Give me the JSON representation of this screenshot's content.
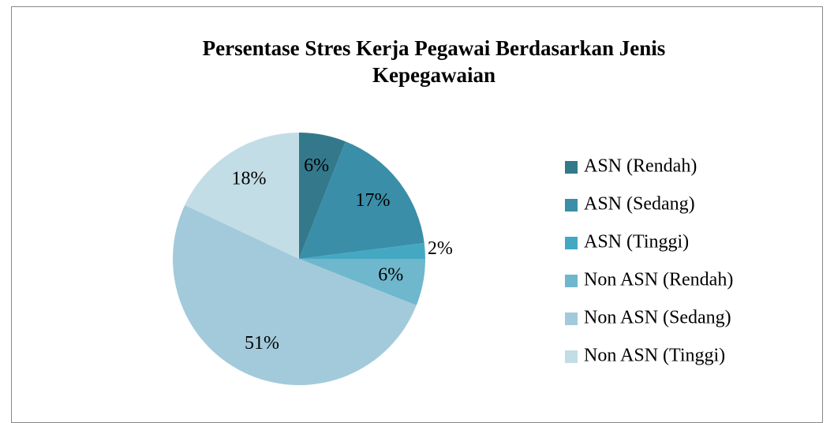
{
  "chart_data": {
    "type": "pie",
    "title": "Persentase Stres Kerja Pegawai Berdasarkan Jenis Kepegawaian",
    "categories": [
      "ASN (Rendah)",
      "ASN (Sedang)",
      "ASN (Tinggi)",
      "Non ASN (Rendah)",
      "Non ASN (Sedang)",
      "Non ASN (Tinggi)"
    ],
    "values": [
      6,
      17,
      2,
      6,
      51,
      18
    ],
    "value_labels": [
      "6%",
      "17%",
      "2%",
      "6%",
      "51%",
      "18%"
    ],
    "colors": [
      "#33798b",
      "#3a8ea8",
      "#45a8c3",
      "#6fb7cd",
      "#a2cadb",
      "#c3dde6"
    ],
    "legend": "right"
  }
}
